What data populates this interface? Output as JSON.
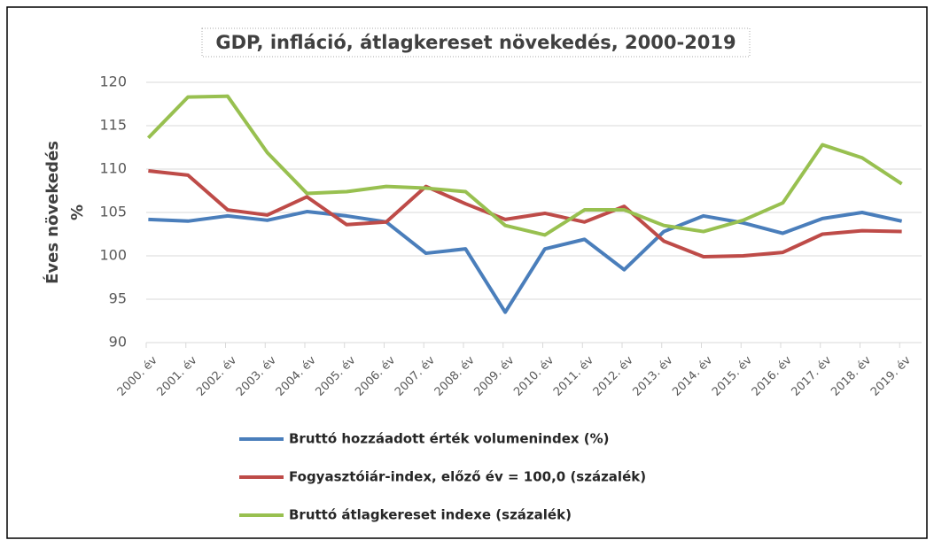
{
  "chart_data": {
    "type": "line",
    "title": "GDP, infláció,  átlagkereset növekedés, 2000-2019",
    "y_label": [
      "Éves növekedés",
      "%"
    ],
    "categories": [
      "2000. év",
      "2001. év",
      "2002. év",
      "2003. év",
      "2004. év",
      "2005. év",
      "2006. év",
      "2007. év",
      "2008. év",
      "2009. év",
      "2010. év",
      "2011. év",
      "2012. év",
      "2013. év",
      "2014. év",
      "2015. év",
      "2016. év",
      "2017. év",
      "2018. év",
      "2019. év"
    ],
    "series": [
      {
        "name": "Bruttó hozzáadott érték volumenindex (%)",
        "color": "#4a7ebb",
        "values": [
          104.2,
          104.0,
          104.6,
          104.1,
          105.1,
          104.6,
          103.9,
          100.3,
          100.8,
          93.5,
          100.8,
          101.9,
          98.4,
          102.8,
          104.6,
          103.8,
          102.6,
          104.3,
          105.0,
          104.0
        ]
      },
      {
        "name": "Fogyasztóiár-index, előző év = 100,0 (százalék)",
        "color": "#be4b48",
        "values": [
          109.8,
          109.3,
          105.3,
          104.7,
          106.8,
          103.6,
          103.9,
          108.0,
          106.0,
          104.2,
          104.9,
          103.9,
          105.7,
          101.7,
          99.9,
          100.0,
          100.4,
          102.5,
          102.9,
          102.8
        ]
      },
      {
        "name": "Bruttó átlagkereset indexe (százalék)",
        "color": "#98c050",
        "values": [
          113.6,
          118.3,
          118.4,
          111.9,
          107.2,
          107.4,
          108.0,
          107.8,
          107.4,
          103.5,
          102.4,
          105.3,
          105.3,
          103.5,
          102.8,
          104.1,
          106.1,
          112.8,
          111.3,
          108.3
        ]
      }
    ],
    "ylim": [
      90,
      120
    ],
    "yticks": [
      90,
      95,
      100,
      105,
      110,
      115,
      120
    ],
    "grid": true
  }
}
